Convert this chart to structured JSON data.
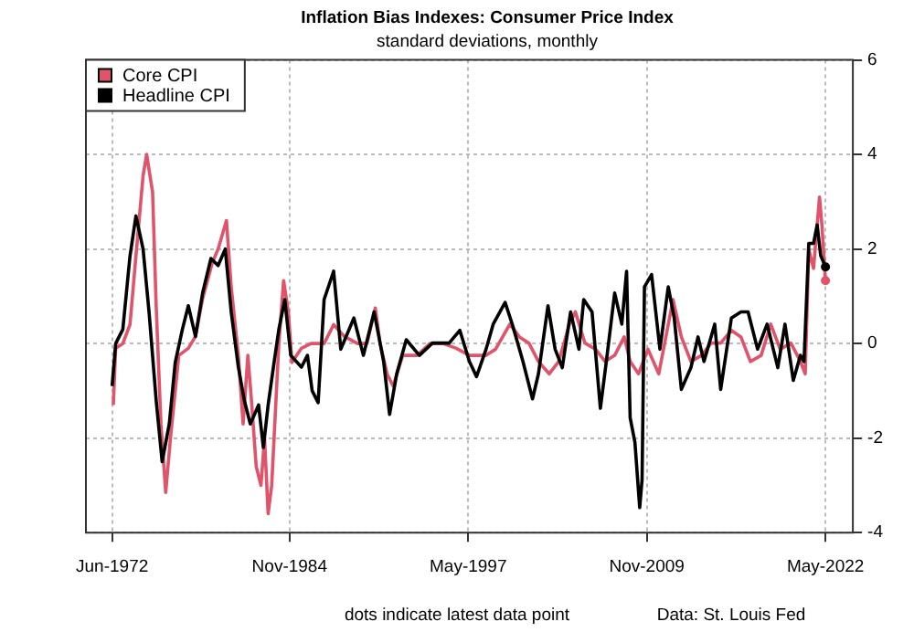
{
  "chart_data": {
    "type": "line",
    "title": "Inflation Bias Indexes: Consumer Price Index",
    "subtitle": "standard deviations, monthly",
    "annotations": [
      "dots indicate latest data point",
      "Data: St. Louis Fed"
    ],
    "xlim": [
      "1970-08",
      "2024-04"
    ],
    "xticks": [
      {
        "value": "1972-06",
        "label": "Jun-1972"
      },
      {
        "value": "1984-11",
        "label": "Nov-1984"
      },
      {
        "value": "1997-05",
        "label": "May-1997"
      },
      {
        "value": "2009-11",
        "label": "Nov-2009"
      },
      {
        "value": "2022-05",
        "label": "May-2022"
      }
    ],
    "ylim": [
      -4,
      6
    ],
    "yticks": [
      -4,
      -2,
      0,
      2,
      4,
      6
    ],
    "grid": true,
    "legend": "top left",
    "marker": "none",
    "line_style": "solid",
    "series": [
      {
        "name": "Core CPI",
        "color": "#df536b",
        "x": [
          "1972-07",
          "1972-09",
          "1973-03",
          "1973-09",
          "1974-02",
          "1974-08",
          "1974-11",
          "1975-04",
          "1975-07",
          "1975-11",
          "1976-03",
          "1976-07",
          "1977-02",
          "1977-10",
          "1978-04",
          "1978-10",
          "1979-06",
          "1979-11",
          "1980-06",
          "1980-10",
          "1981-04",
          "1981-08",
          "1981-12",
          "1982-03",
          "1982-07",
          "1982-11",
          "1983-02",
          "1983-05",
          "1983-08",
          "1983-10",
          "1984-02",
          "1984-06",
          "1984-10",
          "1985-01",
          "1985-09",
          "1986-05",
          "1987-04",
          "1987-12",
          "1988-09",
          "1989-08",
          "1990-04",
          "1990-11",
          "1991-03",
          "1991-09",
          "1992-02",
          "1992-10",
          "1993-10",
          "1994-09",
          "1995-08",
          "1996-07",
          "1997-06",
          "1998-08",
          "1999-04",
          "2000-04",
          "2000-12",
          "2001-08",
          "2002-04",
          "2003-01",
          "2003-09",
          "2004-06",
          "2004-11",
          "2005-07",
          "2006-04",
          "2006-12",
          "2007-08",
          "2008-04",
          "2008-09",
          "2009-04",
          "2009-12",
          "2010-09",
          "2011-02",
          "2011-09",
          "2012-04",
          "2012-12",
          "2013-09",
          "2014-05",
          "2015-01",
          "2015-10",
          "2016-06",
          "2017-02",
          "2017-11",
          "2018-07",
          "2019-03",
          "2019-12",
          "2020-08",
          "2020-12",
          "2021-03",
          "2021-07",
          "2021-12",
          "2022-02",
          "2022-05"
        ],
        "values": [
          -1.3,
          -0.1,
          0,
          0.4,
          1.85,
          3.55,
          4,
          3.2,
          0.8,
          -1.7,
          -3.15,
          -2,
          -0.25,
          -0.1,
          0.15,
          0.95,
          1.7,
          2,
          2.6,
          1.2,
          -0.25,
          -1.7,
          -0.25,
          -1.2,
          -2.6,
          -3,
          -2,
          -3.6,
          -3,
          -2,
          0,
          1.33,
          0.67,
          -0.4,
          -0.1,
          0,
          0,
          0.4,
          0.15,
          0,
          0,
          0.75,
          0,
          -0.65,
          -0.9,
          -0.25,
          -0.25,
          0,
          0,
          -0.1,
          -0.25,
          -0.25,
          -0.12,
          0.41,
          0.14,
          0.01,
          -0.38,
          -0.64,
          -0.38,
          0.41,
          0.67,
          0.01,
          -0.12,
          -0.38,
          -0.25,
          0.14,
          -0.38,
          -0.64,
          -0.12,
          -0.64,
          0.01,
          0.93,
          0.14,
          -0.38,
          -0.25,
          0.01,
          0.01,
          0.28,
          0.14,
          -0.38,
          -0.25,
          0.41,
          -0.12,
          0.01,
          -0.38,
          -0.64,
          1.99,
          1.59,
          3.1,
          2.51,
          1.33
        ]
      },
      {
        "name": "Headline CPI",
        "color": "#000000",
        "x": [
          "1972-06",
          "1972-09",
          "1973-03",
          "1973-09",
          "1974-02",
          "1974-08",
          "1975-01",
          "1975-07",
          "1975-12",
          "1976-06",
          "1976-11",
          "1977-05",
          "1977-10",
          "1978-04",
          "1978-10",
          "1979-05",
          "1979-11",
          "1980-05",
          "1980-10",
          "1981-04",
          "1981-09",
          "1982-02",
          "1982-09",
          "1983-01",
          "1983-05",
          "1983-10",
          "1984-02",
          "1984-07",
          "1984-12",
          "1985-09",
          "1986-02",
          "1986-06",
          "1986-11",
          "1987-04",
          "1987-12",
          "1988-06",
          "1989-05",
          "1990-01",
          "1990-10",
          "1991-06",
          "1991-11",
          "1992-05",
          "1993-01",
          "1993-12",
          "1994-11",
          "1996-01",
          "1996-10",
          "1997-06",
          "1997-12",
          "1998-08",
          "1999-02",
          "1999-12",
          "2000-06",
          "2001-03",
          "2001-11",
          "2002-04",
          "2002-12",
          "2003-06",
          "2003-12",
          "2004-07",
          "2005-02",
          "2005-06",
          "2006-01",
          "2006-08",
          "2007-01",
          "2007-08",
          "2008-02",
          "2008-06",
          "2008-09",
          "2009-01",
          "2009-05",
          "2009-07",
          "2009-09",
          "2010-03",
          "2010-10",
          "2011-05",
          "2011-10",
          "2012-04",
          "2012-12",
          "2013-06",
          "2013-11",
          "2014-08",
          "2015-01",
          "2015-10",
          "2016-06",
          "2016-12",
          "2017-08",
          "2018-04",
          "2019-01",
          "2019-07",
          "2020-02",
          "2020-08",
          "2020-11",
          "2021-03",
          "2021-07",
          "2021-10",
          "2022-01",
          "2022-05"
        ],
        "values": [
          -0.9,
          0,
          0.3,
          1.85,
          2.7,
          2,
          0.67,
          -1.2,
          -2.5,
          -1.7,
          -0.4,
          0.3,
          0.8,
          0.15,
          1.07,
          1.8,
          1.65,
          2,
          0.67,
          -0.5,
          -1.2,
          -1.7,
          -1.3,
          -2.2,
          -1.3,
          -0.4,
          0.3,
          0.93,
          -0.25,
          -0.5,
          -0.25,
          -1,
          -1.25,
          0.93,
          1.53,
          -0.12,
          0.54,
          -0.25,
          0.67,
          -0.38,
          -1.5,
          -0.64,
          0.08,
          -0.25,
          0.01,
          0.01,
          0.28,
          -0.38,
          -0.7,
          -0.12,
          0.41,
          0.87,
          0.41,
          -0.38,
          -1.17,
          -0.64,
          0.8,
          -0.12,
          -0.51,
          0.67,
          -0.12,
          0.93,
          0.67,
          -1.37,
          -0.38,
          1.07,
          0.41,
          1.53,
          -1.57,
          -2.09,
          -3.47,
          -2.88,
          1.2,
          1.46,
          -0.12,
          1.2,
          0.54,
          -0.97,
          -0.51,
          0.14,
          -0.38,
          0.41,
          -0.97,
          0.54,
          0.67,
          0.67,
          -0.12,
          0.41,
          -0.51,
          0.41,
          -0.78,
          -0.25,
          -0.38,
          2.12,
          2.12,
          2.51,
          1.86,
          1.62
        ]
      }
    ]
  }
}
